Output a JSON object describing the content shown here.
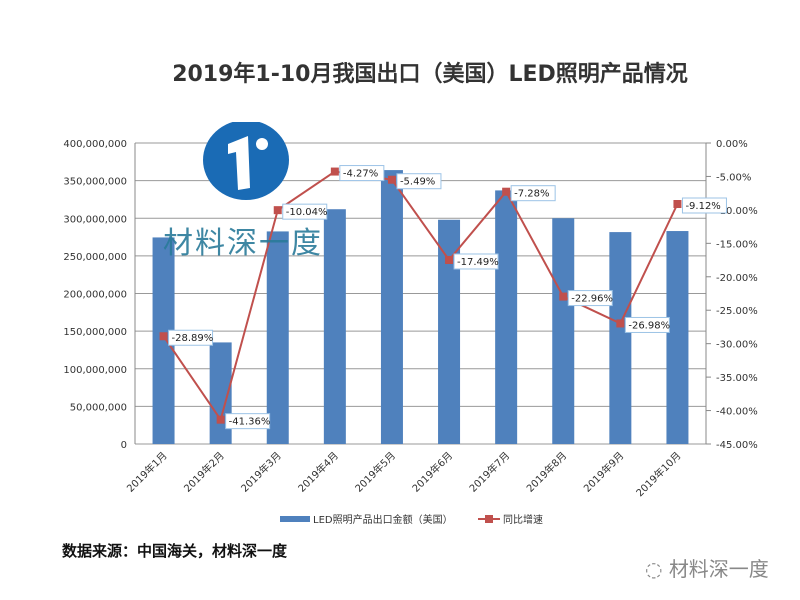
{
  "chart_data": {
    "type": "bar+line",
    "title": "2019年1-10月我国出口（美国）LED照明产品情况",
    "categories": [
      "2019年1月",
      "2019年2月",
      "2019年3月",
      "2019年4月",
      "2019年5月",
      "2019年6月",
      "2019年7月",
      "2019年8月",
      "2019年9月",
      "2019年10月"
    ],
    "series": [
      {
        "name": "LED照明产品出口金额（美国）",
        "type": "bar",
        "axis": "left",
        "color": "#4f81bd",
        "values": [
          274500000,
          135000000,
          282500000,
          312000000,
          364000000,
          298000000,
          337000000,
          300000000,
          281600000,
          283000000
        ]
      },
      {
        "name": "同比增速",
        "type": "line",
        "axis": "right",
        "color": "#c0504d",
        "values": [
          -28.89,
          -41.36,
          -10.04,
          -4.27,
          -5.49,
          -17.49,
          -7.28,
          -22.96,
          -26.98,
          -9.12
        ],
        "labels": [
          "-28.89%",
          "-41.36%",
          "-10.04%",
          "-4.27%",
          "-5.49%",
          "-17.49%",
          "-7.28%",
          "-22.96%",
          "-26.98%",
          "-9.12%"
        ]
      }
    ],
    "left_axis": {
      "ylim": [
        0,
        400000000
      ],
      "ticks": [
        "0",
        "50,000,000",
        "100,000,000",
        "150,000,000",
        "200,000,000",
        "250,000,000",
        "300,000,000",
        "350,000,000",
        "400,000,000"
      ]
    },
    "right_axis": {
      "ylim": [
        -45,
        0
      ],
      "ticks": [
        "0.00%",
        "-5.00%",
        "-10.00%",
        "-15.00%",
        "-20.00%",
        "-25.00%",
        "-30.00%",
        "-35.00%",
        "-40.00%",
        "-45.00%"
      ]
    },
    "grid": true,
    "legend": "bottom"
  },
  "source": "数据来源：中国海关，材料深一度",
  "logo_text": "材料深一度",
  "watermark": "材料深一度"
}
